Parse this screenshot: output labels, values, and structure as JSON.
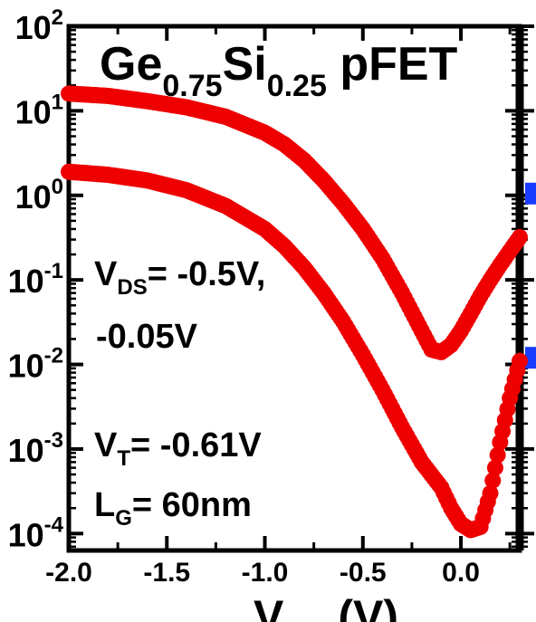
{
  "chart_data": {
    "type": "scatter",
    "title_parts": [
      "Ge",
      "0.75",
      "Si",
      "0.25",
      " pFET"
    ],
    "xlabel_visible": "V",
    "xlabel_unit": "(V)",
    "xlim": [
      -2.0,
      0.3
    ],
    "ylim_log10": [
      -4.2,
      2.0
    ],
    "y_scale": "log",
    "x_ticks": [
      "-2.0",
      "-1.5",
      "-1.0",
      "-0.5",
      "0.0"
    ],
    "x_tick_values": [
      -2.0,
      -1.5,
      -1.0,
      -0.5,
      0.0
    ],
    "y_tick_exponents": [
      "2",
      "1",
      "0",
      "-1",
      "-2",
      "-3",
      "-4"
    ],
    "y_tick_base": "10",
    "annotations": {
      "vds_main": "V",
      "vds_sub": "DS",
      "vds_value": "= -0.5V,",
      "vds_value2": "-0.05V",
      "vt_main": "V",
      "vt_sub": "T",
      "vt_value": "= -0.61V",
      "lg_main": "L",
      "lg_sub": "G",
      "lg_value": "= 60nm"
    },
    "marker_color": "#ee0000",
    "secondary_marker_color": "#1a3cff",
    "series": [
      {
        "x": [
          -2.0,
          -1.8,
          -1.6,
          -1.4,
          -1.2,
          -1.0,
          -0.9,
          -0.8,
          -0.7,
          -0.6,
          -0.5,
          -0.4,
          -0.3,
          -0.2,
          -0.15,
          -0.1,
          -0.05,
          0.0,
          0.05,
          0.1,
          0.15,
          0.2,
          0.25,
          0.3
        ],
        "y": [
          16,
          15,
          13,
          11,
          8.5,
          5.5,
          4.0,
          2.6,
          1.5,
          0.8,
          0.4,
          0.18,
          0.07,
          0.025,
          0.015,
          0.014,
          0.017,
          0.025,
          0.04,
          0.065,
          0.1,
          0.15,
          0.22,
          0.32
        ]
      },
      {
        "x": [
          -2.0,
          -1.8,
          -1.6,
          -1.4,
          -1.2,
          -1.0,
          -0.9,
          -0.8,
          -0.7,
          -0.6,
          -0.5,
          -0.4,
          -0.3,
          -0.2,
          -0.1,
          -0.05,
          0.0,
          0.05,
          0.1,
          0.15,
          0.2,
          0.25,
          0.3
        ],
        "y": [
          1.9,
          1.75,
          1.5,
          1.15,
          0.75,
          0.4,
          0.25,
          0.14,
          0.07,
          0.032,
          0.013,
          0.005,
          0.0018,
          0.0007,
          0.00035,
          0.0002,
          0.00013,
          0.00011,
          0.00012,
          0.0003,
          0.0012,
          0.004,
          0.011
        ]
      }
    ],
    "secondary_marks_y": [
      1.05,
      0.012
    ]
  }
}
